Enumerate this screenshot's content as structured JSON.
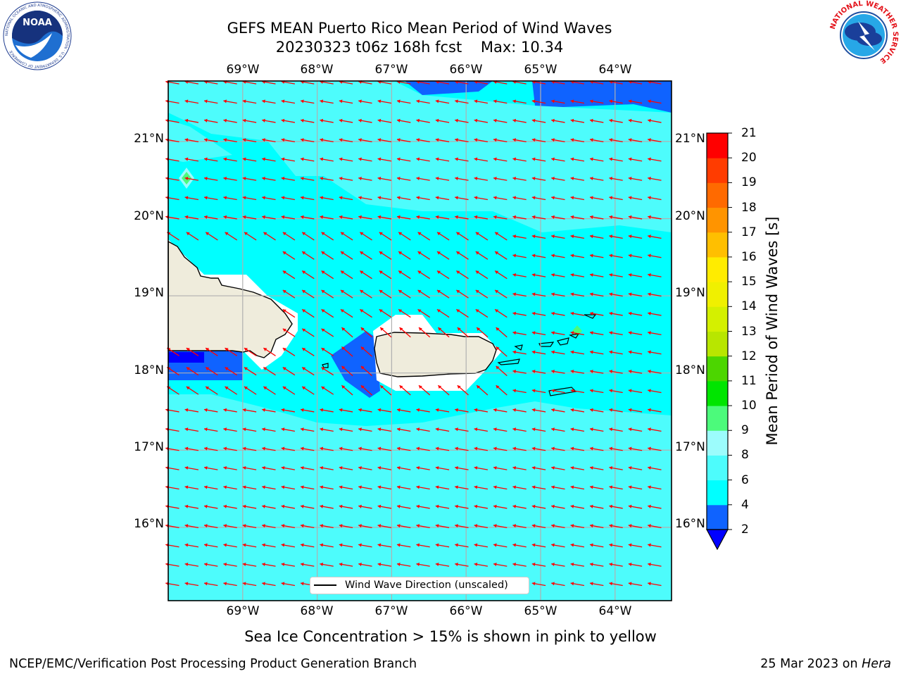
{
  "title": {
    "line1": "GEFS MEAN Puerto Rico Mean Period of Wind Waves",
    "line2": "20230323 t06z 168h fcst    Max: 10.34"
  },
  "map": {
    "lon_labels": [
      "69°W",
      "68°W",
      "67°W",
      "66°W",
      "65°W",
      "64°W"
    ],
    "lat_labels": [
      "21°N",
      "20°N",
      "19°N",
      "18°N",
      "17°N",
      "16°N"
    ],
    "land_color": "#efecdc",
    "ocean_color_main": "#00ffff",
    "ocean_color_light": "#4dfcfc",
    "ocean_color_dark": "#0f63ff",
    "arrow_color": "#ff0000",
    "grid_color": "#b0b0b0"
  },
  "legend": {
    "label": "Wind Wave Direction (unscaled)"
  },
  "colorbar": {
    "label": "Mean Period of Wind Waves [s]",
    "ticks": [
      "2",
      "4",
      "6",
      "8",
      "9",
      "10",
      "11",
      "12",
      "13",
      "14",
      "15",
      "16",
      "17",
      "18",
      "19",
      "20",
      "21"
    ],
    "colors": [
      "#0f63ff",
      "#00ffff",
      "#4dfcfc",
      "#9cfcfc",
      "#4cfa7b",
      "#00e500",
      "#4cd600",
      "#b8e600",
      "#d4f000",
      "#f0f000",
      "#ffec00",
      "#ffbf00",
      "#ff9400",
      "#ff6a00",
      "#ff3c00",
      "#ff0000"
    ],
    "under_color": "#0000ff"
  },
  "caption": "Sea Ice Concentration > 15% is shown in pink to yellow",
  "footer": {
    "left": "NCEP/EMC/Verification Post Processing Product Generation Branch",
    "date": "25 Mar 2023 on",
    "machine": "Hera"
  },
  "logos": {
    "noaa_text": "NOAA",
    "noaa_ring": "NATIONAL OCEANIC AND ATMOSPHERIC ADMINISTRATION · U.S. DEPARTMENT OF COMMERCE",
    "nws_ring": "NATIONAL WEATHER SERVICE"
  }
}
